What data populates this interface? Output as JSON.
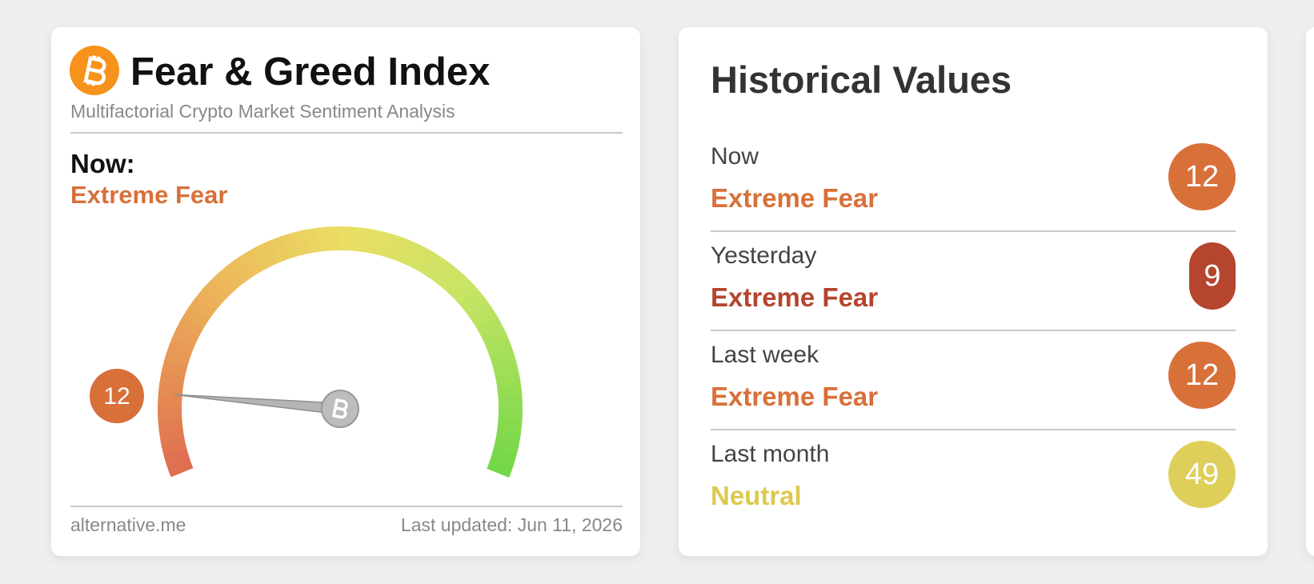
{
  "gauge_card": {
    "title": "Fear & Greed Index",
    "subtitle": "Multifactorial Crypto Market Sentiment Analysis",
    "now_label": "Now:",
    "now_status": "Extreme Fear",
    "gauge_value": 12,
    "footer_left": "alternative.me",
    "footer_right": "Last updated: Jun 11, 2026"
  },
  "history_card": {
    "title": "Historical Values",
    "rows": [
      {
        "period": "Now",
        "status": "Extreme Fear",
        "value": 12
      },
      {
        "period": "Yesterday",
        "status": "Extreme Fear",
        "value": 9
      },
      {
        "period": "Last week",
        "status": "Extreme Fear",
        "value": 12
      },
      {
        "period": "Last month",
        "status": "Neutral",
        "value": 49
      }
    ]
  }
}
